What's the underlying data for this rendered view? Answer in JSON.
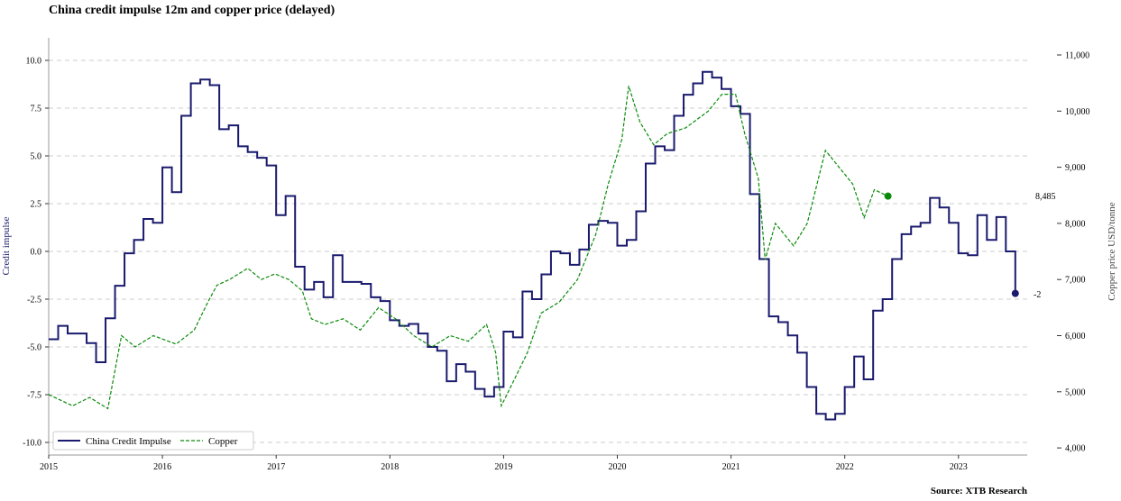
{
  "chart_data": {
    "type": "line",
    "title": "China credit impulse 12m and copper price (delayed)",
    "source": "Source: XTB Research",
    "ylabel_left": "Credit impulse",
    "ylabel_right": "Copper price USD/tonne",
    "ylim_left": [
      -10.6,
      11.2
    ],
    "ylim_right": [
      3850,
      11300
    ],
    "xlim": [
      2015,
      2023.6
    ],
    "grid": "horizontal-dashed",
    "legend_placement": "bottom-left",
    "x_ticks": [
      "2015",
      "2016",
      "2017",
      "2018",
      "2019",
      "2020",
      "2021",
      "2022",
      "2023"
    ],
    "y_left_ticks": [
      "-10.0",
      "-7.5",
      "-5.0",
      "-2.5",
      "0.0",
      "2.5",
      "5.0",
      "7.5",
      "10.0"
    ],
    "y_right_ticks": [
      "4,000",
      "5,000",
      "6,000",
      "7,000",
      "8,000",
      "9,000",
      "10,000",
      "11,000"
    ],
    "series": [
      {
        "name": "China Credit Impulse",
        "color": "#1a1a6e",
        "style": "step",
        "start": 2015.0,
        "step_years": 0.08333,
        "values": [
          -4.6,
          -3.9,
          -4.3,
          -4.3,
          -4.8,
          -5.8,
          -3.5,
          -1.8,
          -0.1,
          0.6,
          1.7,
          1.5,
          4.4,
          3.1,
          7.1,
          8.8,
          9.0,
          8.7,
          6.4,
          6.6,
          5.5,
          5.2,
          4.9,
          4.5,
          1.9,
          2.9,
          -0.8,
          -2.0,
          -1.6,
          -2.4,
          -0.2,
          -1.6,
          -1.6,
          -1.7,
          -2.4,
          -2.6,
          -3.6,
          -3.9,
          -3.8,
          -4.3,
          -5.0,
          -5.2,
          -6.8,
          -5.9,
          -6.3,
          -7.2,
          -7.6,
          -7.1,
          -4.2,
          -4.5,
          -2.1,
          -2.5,
          -1.2,
          0.0,
          -0.1,
          -0.7,
          0.1,
          1.4,
          1.6,
          1.5,
          0.3,
          0.6,
          2.1,
          4.6,
          5.5,
          5.3,
          7.1,
          8.2,
          8.8,
          9.4,
          9.1,
          8.5,
          7.6,
          7.2,
          3.0,
          -0.4,
          -3.4,
          -3.7,
          -4.4,
          -5.3,
          -7.1,
          -8.5,
          -8.8,
          -8.5,
          -7.1,
          -5.5,
          -6.7,
          -3.1,
          -2.5,
          -0.4,
          0.9,
          1.3,
          1.5,
          2.8,
          2.3,
          1.5,
          -0.1,
          -0.2,
          1.9,
          0.6,
          1.8,
          0.0,
          -2.2
        ],
        "last_label": "-2"
      },
      {
        "name": "Copper",
        "color": "#0a8a0a",
        "style": "dashed",
        "x": [
          2015.0,
          2015.21,
          2015.36,
          2015.52,
          2015.64,
          2015.76,
          2015.92,
          2016.12,
          2016.28,
          2016.4,
          2016.48,
          2016.59,
          2016.75,
          2016.87,
          2016.99,
          2017.11,
          2017.23,
          2017.31,
          2017.43,
          2017.59,
          2017.74,
          2017.9,
          2018.05,
          2018.21,
          2018.37,
          2018.53,
          2018.69,
          2018.85,
          2018.93,
          2018.98,
          2019.09,
          2019.21,
          2019.33,
          2019.49,
          2019.65,
          2019.81,
          2019.92,
          2020.04,
          2020.1,
          2020.2,
          2020.32,
          2020.44,
          2020.6,
          2020.8,
          2020.92,
          2021.04,
          2021.12,
          2021.24,
          2021.3,
          2021.39,
          2021.55,
          2021.67,
          2021.83,
          2021.95,
          2022.07,
          2022.17,
          2022.26,
          2022.38
        ],
        "values": [
          4950,
          4750,
          4900,
          4700,
          6000,
          5800,
          6000,
          5850,
          6100,
          6600,
          6900,
          7000,
          7200,
          7000,
          7100,
          7000,
          6800,
          6300,
          6200,
          6300,
          6100,
          6500,
          6300,
          6000,
          5800,
          6000,
          5900,
          6200,
          5700,
          4750,
          5200,
          5700,
          6400,
          6600,
          7000,
          7800,
          8700,
          9500,
          10450,
          9800,
          9400,
          9600,
          9700,
          10000,
          10300,
          10300,
          9600,
          8800,
          7350,
          8000,
          7600,
          8000,
          9300,
          9000,
          8700,
          8100,
          8600,
          8485
        ],
        "last_label": "8,485"
      }
    ]
  }
}
